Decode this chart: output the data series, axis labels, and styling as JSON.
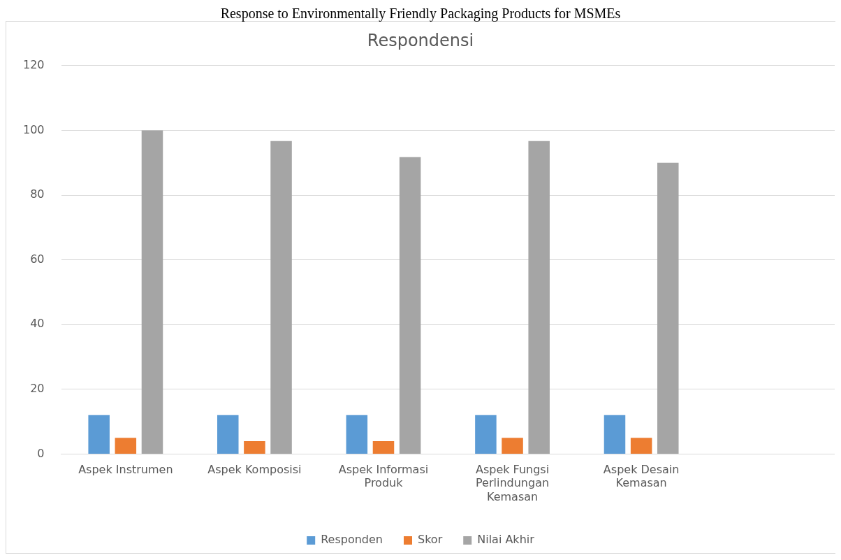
{
  "chart_data": {
    "type": "bar",
    "title": "Response to Environmentally Friendly Packaging Products for MSMEs",
    "subtitle": "Respondensi",
    "categories": [
      "Aspek Instrumen",
      "Aspek Komposisi",
      "Aspek Informasi Produk",
      "Aspek Fungsi Perlindungan Kemasan",
      "Aspek Desain Kemasan",
      null
    ],
    "series": [
      {
        "name": "Responden",
        "color": "#5b9bd5",
        "values": [
          12,
          12,
          12,
          12,
          12,
          null
        ]
      },
      {
        "name": "Skor",
        "color": "#ed7d31",
        "values": [
          5,
          4,
          4,
          5,
          5,
          null
        ]
      },
      {
        "name": "Nilai Akhir",
        "color": "#a5a5a5",
        "values": [
          100,
          96.7,
          91.7,
          96.7,
          90,
          null
        ]
      }
    ],
    "ylim": [
      0,
      120
    ],
    "yticks": [
      0,
      20,
      40,
      60,
      80,
      100,
      120
    ],
    "grid": "y",
    "legend": "bottom"
  }
}
